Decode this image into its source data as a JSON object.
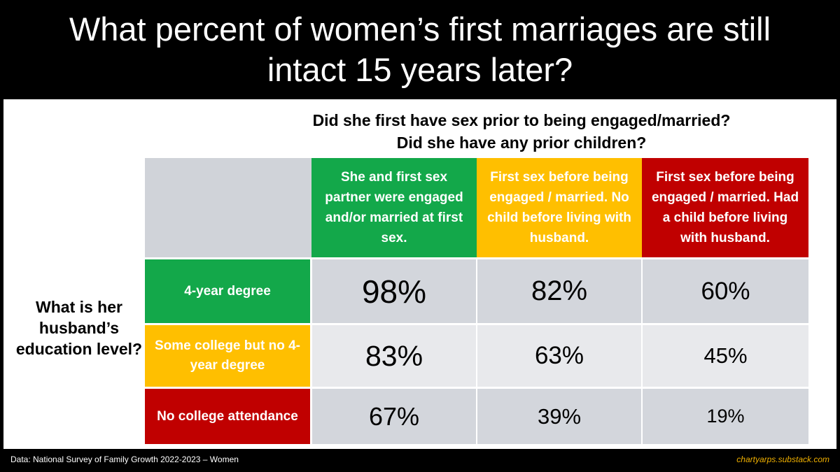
{
  "title": "What percent of women’s first marriages are still intact 15 years later?",
  "chart_data": {
    "type": "table",
    "column_question_line1": "Did she first have sex prior to being engaged/married?",
    "column_question_line2": "Did she have any prior children?",
    "row_question": "What is her husband’s education level?",
    "columns": [
      {
        "label": "She and first sex partner were engaged and/or married at first sex.",
        "color": "#13a84a"
      },
      {
        "label": "First sex before being engaged / married. No child before living with husband.",
        "color": "#ffbf00"
      },
      {
        "label": "First sex before being engaged / married. Had a child before living with husband.",
        "color": "#c00000"
      }
    ],
    "rows": [
      {
        "label": "4-year degree",
        "color": "#13a84a",
        "values": [
          "98%",
          "82%",
          "60%"
        ]
      },
      {
        "label": "Some college but no 4-year degree",
        "color": "#ffbf00",
        "values": [
          "83%",
          "63%",
          "45%"
        ]
      },
      {
        "label": "No college attendance",
        "color": "#c00000",
        "values": [
          "67%",
          "39%",
          "19%"
        ]
      }
    ]
  },
  "footer": {
    "source": "Data: National Survey of Family Growth 2022-2023 – Women",
    "credit": "chartyarps.substack.com"
  }
}
